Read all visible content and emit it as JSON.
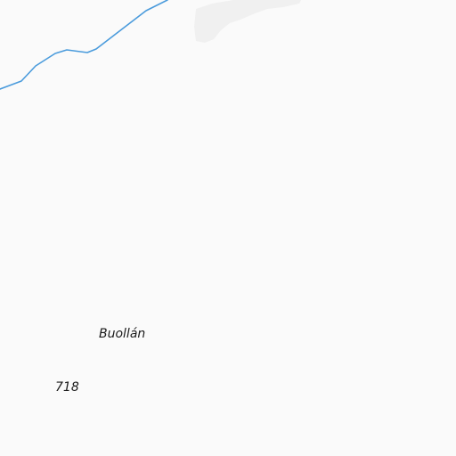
{
  "map": {
    "colors": {
      "background": "#fafafa",
      "water_line": "#4a9bdc",
      "land_patch": "#f0f0f0"
    },
    "features": {
      "stream": {
        "type": "waterway-line"
      },
      "patch": {
        "type": "land-area"
      }
    },
    "labels": {
      "village": "Buollán",
      "elevation": "718"
    }
  }
}
